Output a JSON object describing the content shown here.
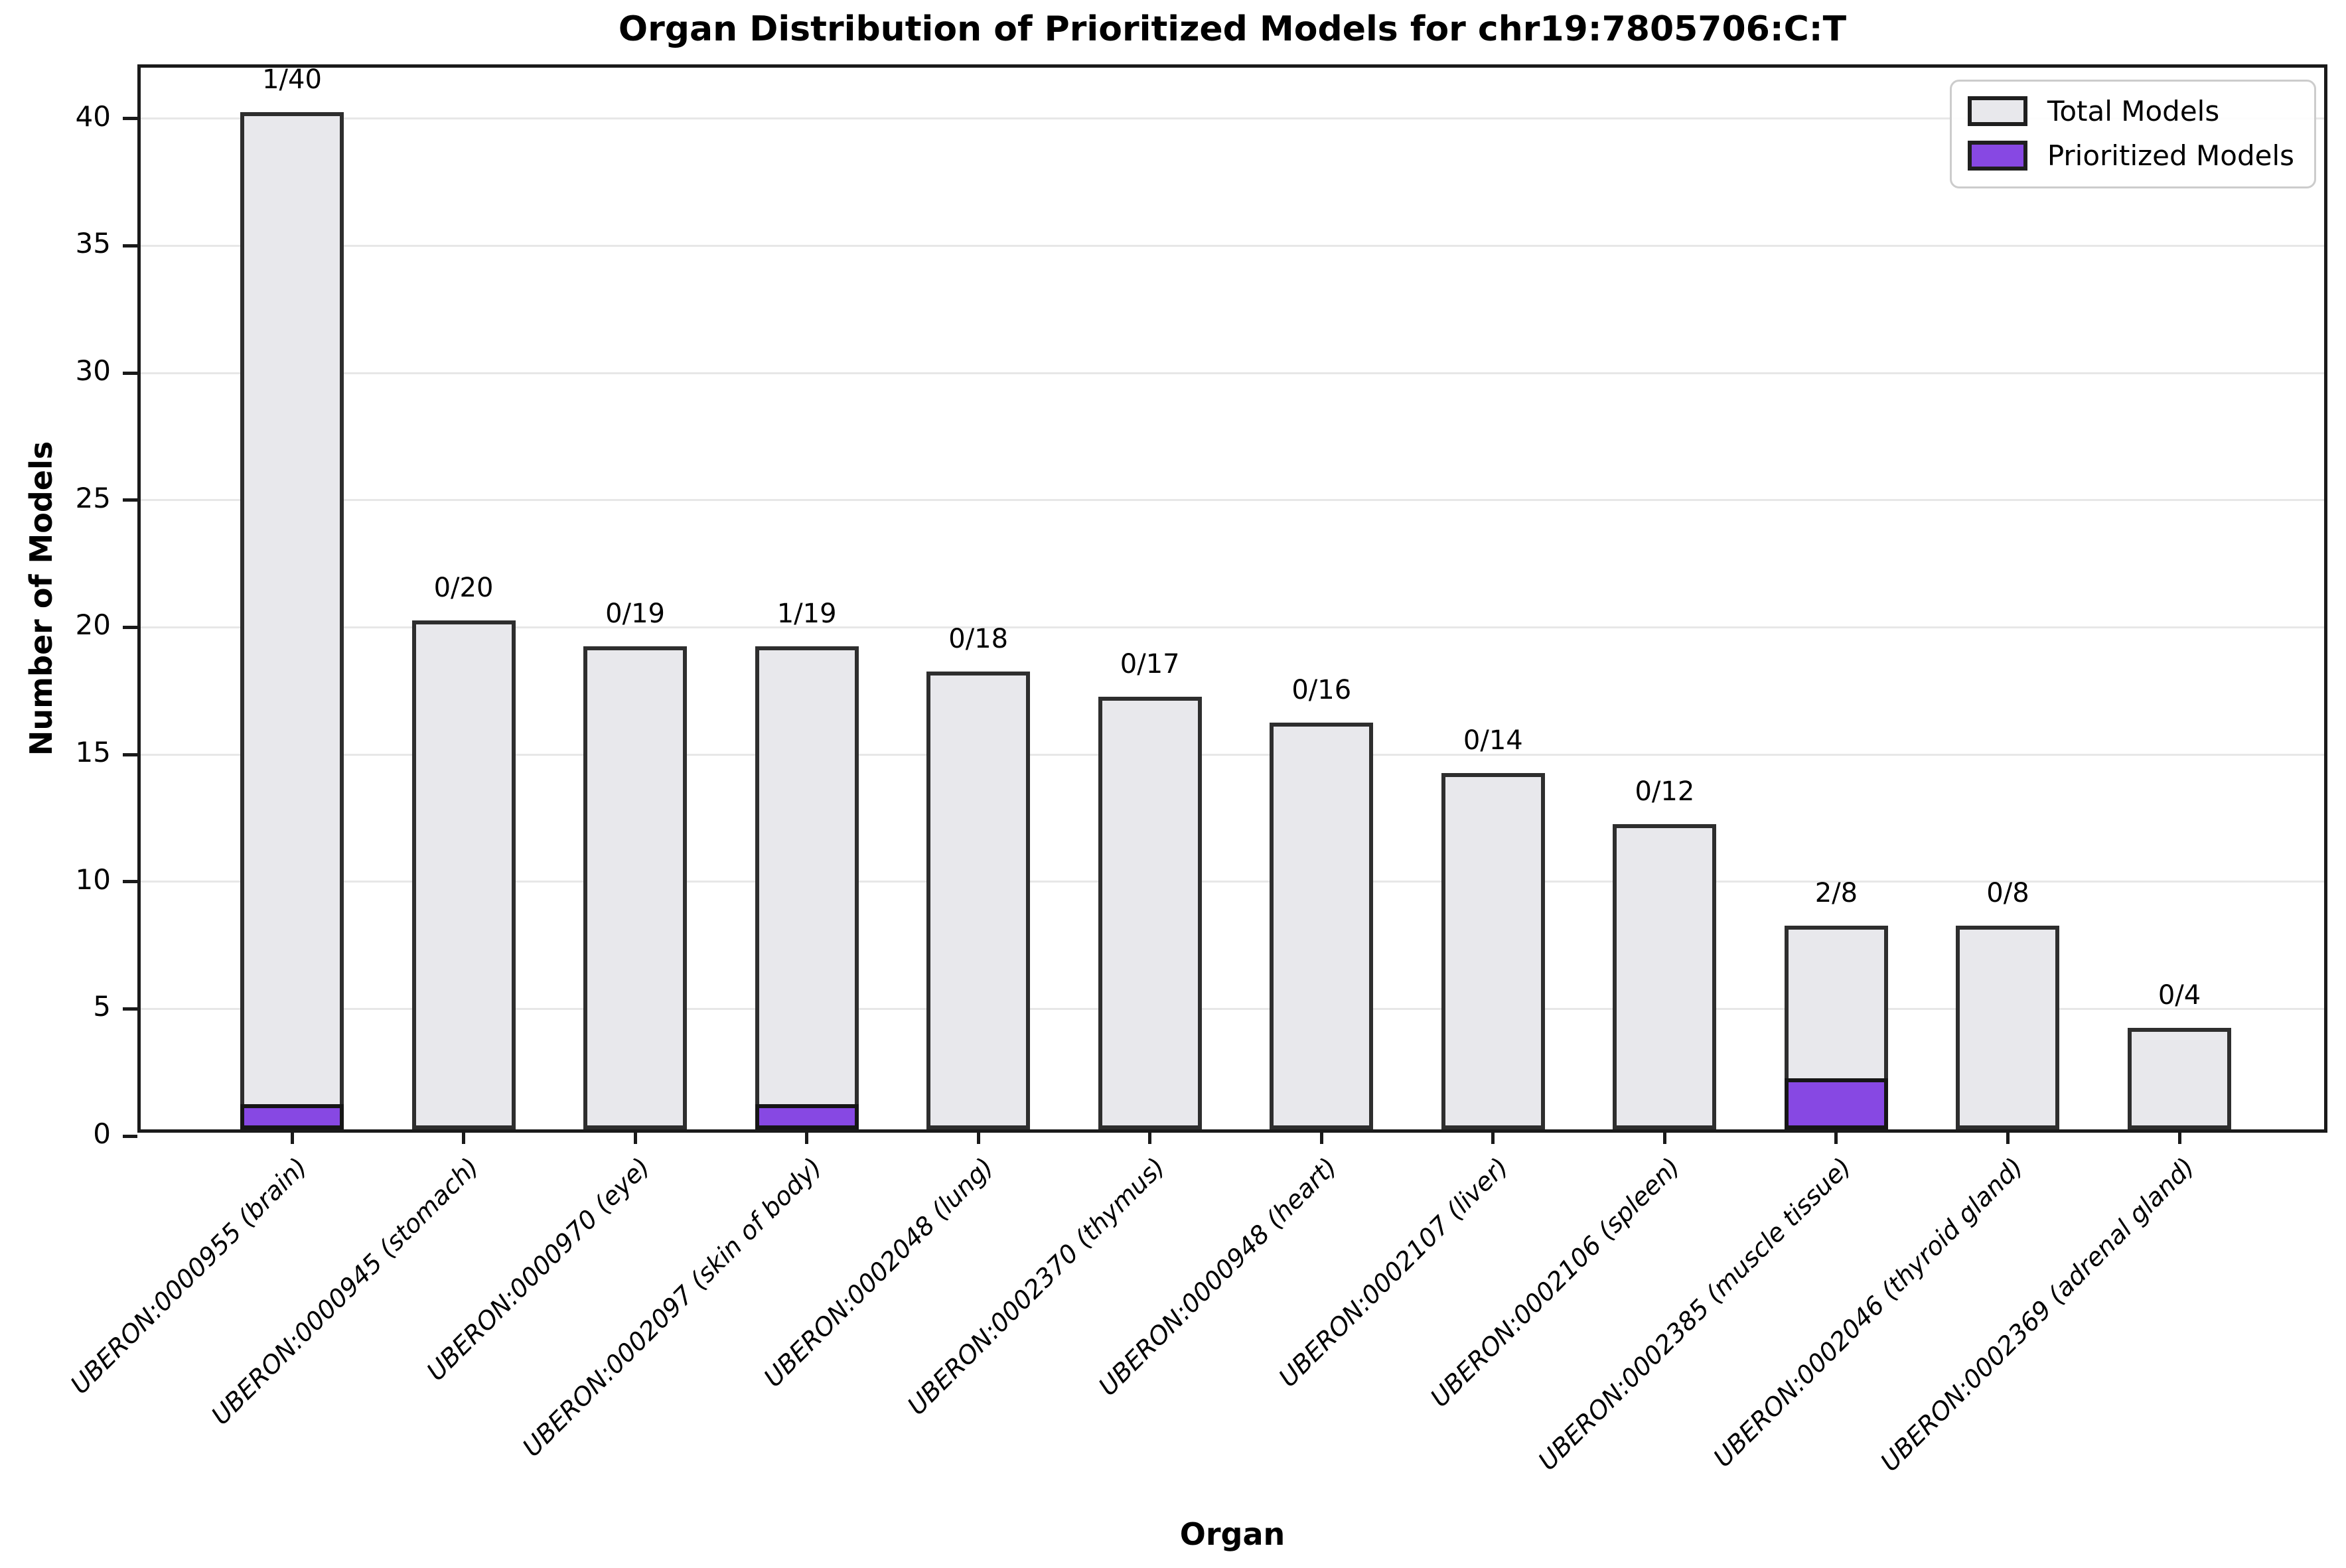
{
  "chart_data": {
    "type": "bar",
    "title": "Organ Distribution of Prioritized Models for chr19:7805706:C:T",
    "xlabel": "Organ",
    "ylabel": "Number of Models",
    "ylim": [
      0,
      42
    ],
    "yticks": [
      0,
      5,
      10,
      15,
      20,
      25,
      30,
      35,
      40
    ],
    "grid": "horizontal",
    "legend_position": "upper right",
    "categories": [
      "UBERON:0000955 (brain)",
      "UBERON:0000945 (stomach)",
      "UBERON:0000970 (eye)",
      "UBERON:0002097 (skin of body)",
      "UBERON:0002048 (lung)",
      "UBERON:0002370 (thymus)",
      "UBERON:0000948 (heart)",
      "UBERON:0002107 (liver)",
      "UBERON:0002106 (spleen)",
      "UBERON:0002385 (muscle tissue)",
      "UBERON:0002046 (thyroid gland)",
      "UBERON:0002369 (adrenal gland)"
    ],
    "series": [
      {
        "name": "Total Models",
        "values": [
          40,
          20,
          19,
          19,
          18,
          17,
          16,
          14,
          12,
          8,
          8,
          4
        ],
        "fill_color": "#e8e8ec",
        "edge_color": "#2e2e2e"
      },
      {
        "name": "Prioritized Models",
        "values": [
          1,
          0,
          0,
          1,
          0,
          0,
          0,
          0,
          0,
          2,
          0,
          0
        ],
        "fill_color": "#8748e3",
        "edge_color": "#161616"
      }
    ],
    "bar_labels": [
      "1/40",
      "0/20",
      "0/19",
      "1/19",
      "0/18",
      "0/17",
      "0/16",
      "0/14",
      "0/12",
      "2/8",
      "0/8",
      "0/4"
    ],
    "grid_color": "#e7e7e7"
  }
}
